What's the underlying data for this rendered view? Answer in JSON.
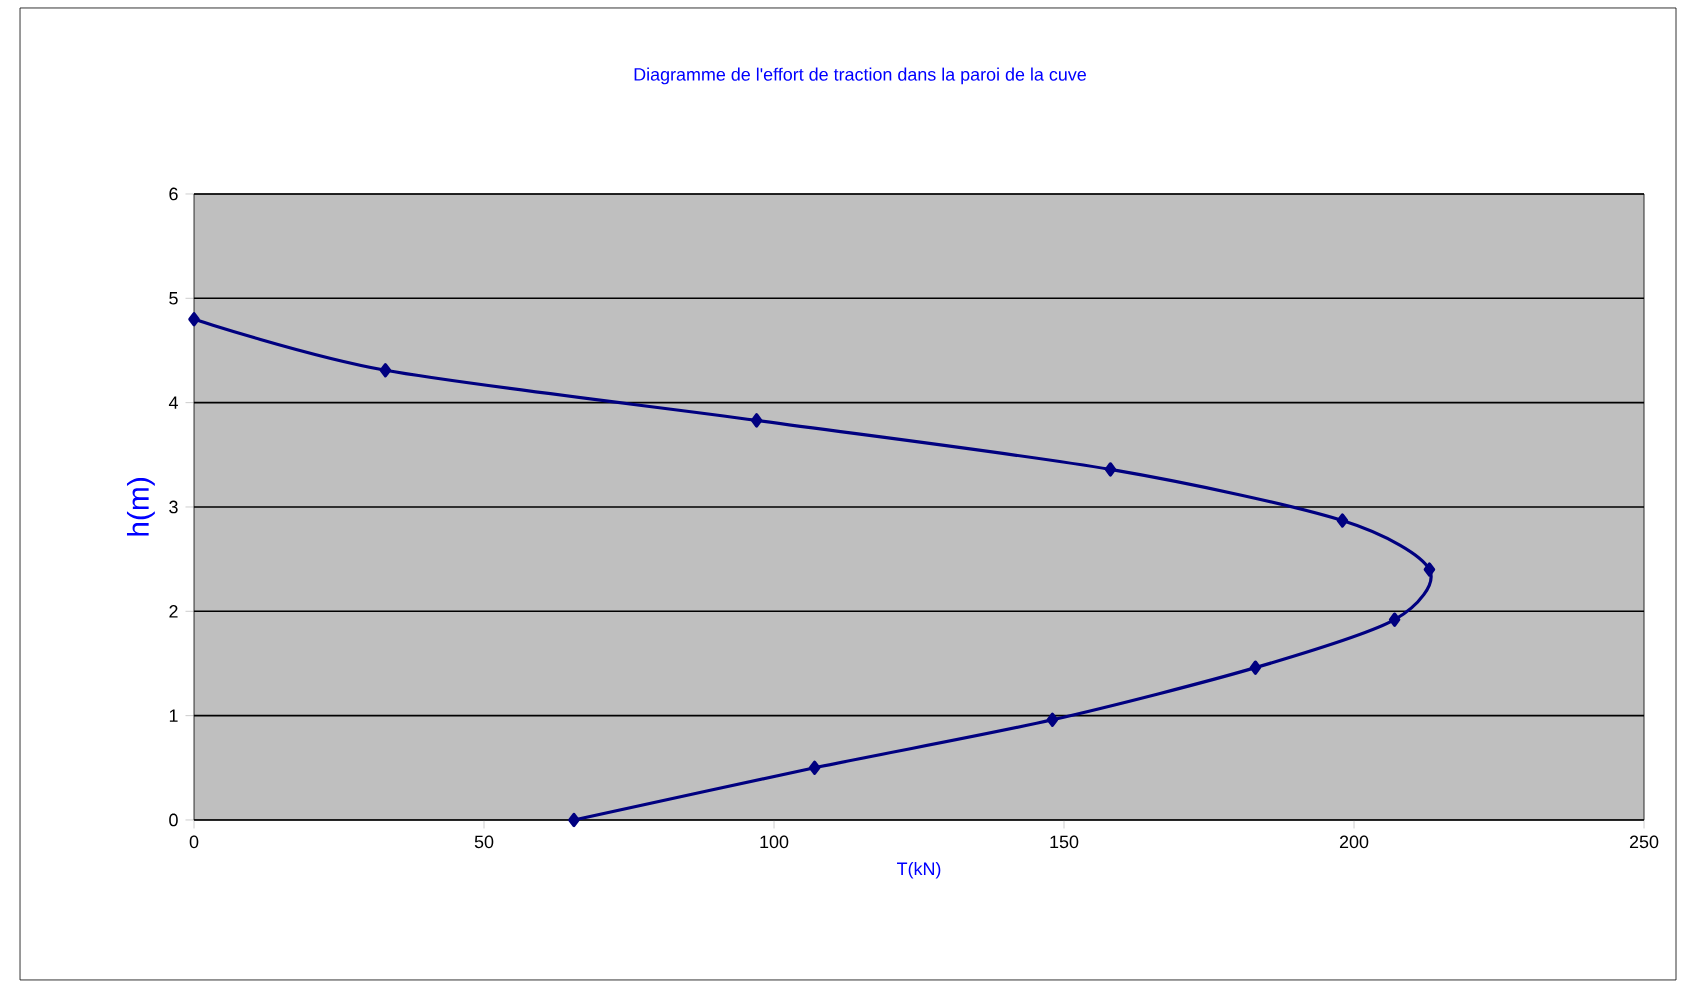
{
  "chart_data": {
    "type": "line",
    "title": "Diagramme de l'effort de traction dans la paroi de la cuve",
    "xlabel": "T(kN)",
    "ylabel": "h(m)",
    "xlim": [
      0,
      250
    ],
    "xticks": [
      0,
      50,
      100,
      150,
      200,
      250
    ],
    "ylim": [
      0,
      6
    ],
    "yticks": [
      0,
      1,
      2,
      3,
      4,
      5,
      6
    ],
    "grid": "y",
    "marker": "diamond",
    "line_style": "solid",
    "series": [
      {
        "color": "#000080",
        "x": [
          65.5,
          107,
          148,
          183,
          207,
          213,
          198,
          158,
          97,
          33,
          0
        ],
        "values": [
          0,
          0.5,
          0.96,
          1.46,
          1.92,
          2.4,
          2.87,
          3.36,
          3.83,
          4.31,
          4.8
        ]
      }
    ]
  }
}
